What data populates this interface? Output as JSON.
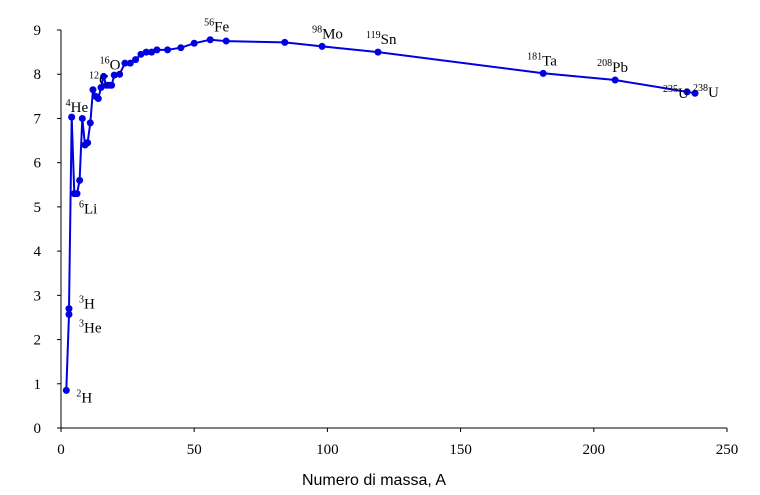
{
  "chart_data": {
    "type": "line",
    "title": "",
    "xlabel": "Numero di massa, A",
    "ylabel": "",
    "xlim": [
      0,
      250
    ],
    "ylim": [
      0,
      9
    ],
    "xticks": [
      0,
      50,
      100,
      150,
      200,
      250
    ],
    "yticks": [
      0,
      1,
      2,
      3,
      4,
      5,
      6,
      7,
      8,
      9
    ],
    "grid": false,
    "line_color": "#0000e0",
    "series": [
      {
        "x": [
          2,
          3,
          3,
          4,
          5,
          6,
          7,
          8,
          9,
          10,
          11,
          12,
          13,
          14,
          15,
          16,
          17,
          18,
          19,
          20,
          22,
          24,
          26,
          28,
          30,
          32,
          34,
          36,
          40,
          45,
          50,
          56,
          62,
          84,
          98,
          119,
          181,
          208,
          235,
          238
        ],
        "y": [
          0.85,
          2.57,
          2.7,
          7.03,
          5.3,
          5.3,
          5.6,
          7.0,
          6.4,
          6.45,
          6.9,
          7.65,
          7.5,
          7.45,
          7.7,
          7.95,
          7.75,
          7.75,
          7.75,
          7.98,
          8.0,
          8.25,
          8.25,
          8.33,
          8.45,
          8.5,
          8.5,
          8.55,
          8.55,
          8.6,
          8.7,
          8.78,
          8.75,
          8.72,
          8.63,
          8.5,
          8.02,
          7.87,
          7.6,
          7.57
        ]
      }
    ],
    "annotations": [
      {
        "sup": "2",
        "base": "H",
        "x": 2,
        "y": 0.85
      },
      {
        "sup": "3",
        "base": "He",
        "x": 3,
        "y": 2.57
      },
      {
        "sup": "3",
        "base": "H",
        "x": 3,
        "y": 2.7
      },
      {
        "sup": "4",
        "base": "He",
        "x": 4,
        "y": 7.03
      },
      {
        "sup": "6",
        "base": "Li",
        "x": 6,
        "y": 5.3
      },
      {
        "sup": "12",
        "base": "C",
        "x": 12,
        "y": 7.65
      },
      {
        "sup": "16",
        "base": "O",
        "x": 16,
        "y": 7.95
      },
      {
        "sup": "56",
        "base": "Fe",
        "x": 56,
        "y": 8.78
      },
      {
        "sup": "98",
        "base": "Mo",
        "x": 98,
        "y": 8.63
      },
      {
        "sup": "119",
        "base": "Sn",
        "x": 119,
        "y": 8.5
      },
      {
        "sup": "181",
        "base": "Ta",
        "x": 181,
        "y": 8.02
      },
      {
        "sup": "208",
        "base": "Pb",
        "x": 208,
        "y": 7.87
      },
      {
        "sup": "235",
        "base": "U",
        "x": 235,
        "y": 7.6
      },
      {
        "sup": "238",
        "base": "U",
        "x": 238,
        "y": 7.57
      }
    ]
  }
}
